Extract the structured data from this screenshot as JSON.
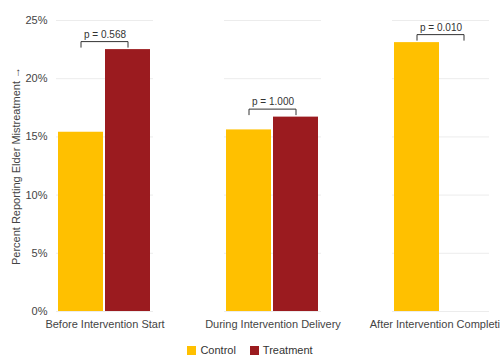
{
  "chart_data": {
    "type": "bar",
    "categories": [
      "Before Intervention Start",
      "During Intervention Delivery",
      "After Intervention Completion"
    ],
    "series": [
      {
        "name": "Control",
        "color": "#FFC000",
        "values": [
          15.4,
          15.6,
          23.1
        ]
      },
      {
        "name": "Treatment",
        "color": "#9B1B1F",
        "values": [
          22.5,
          16.7,
          0
        ]
      }
    ],
    "ylabel": "Percent Reporting Elder Mistreatment",
    "ylim": [
      0,
      25
    ],
    "yticks": [
      {
        "value": 0,
        "label": "0%"
      },
      {
        "value": 5,
        "label": "5%"
      },
      {
        "value": 10,
        "label": "10%"
      },
      {
        "value": 15,
        "label": "15%"
      },
      {
        "value": 20,
        "label": "20%"
      },
      {
        "value": 25,
        "label": "25%"
      }
    ],
    "annotations": [
      {
        "category": "Before Intervention Start",
        "text": "p = 0.568"
      },
      {
        "category": "During Intervention Delivery",
        "text": "p = 1.000"
      },
      {
        "category": "After Intervention Completion",
        "text": "p = 0.010"
      }
    ],
    "grid": true,
    "legend": "bottom"
  }
}
